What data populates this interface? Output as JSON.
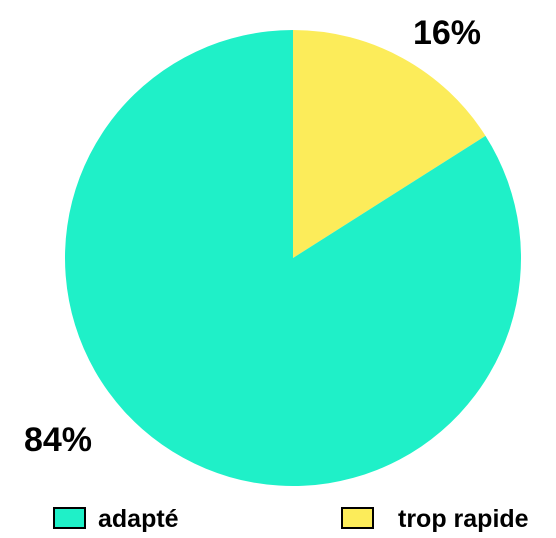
{
  "chart_data": {
    "type": "pie",
    "categories": [
      "adapté",
      "trop rapide"
    ],
    "values": [
      84,
      16
    ],
    "value_labels": [
      "84%",
      "16%"
    ],
    "colors": [
      "#1ff0c8",
      "#fcec5a"
    ],
    "legend_position": "bottom",
    "start_angle": "12 o'clock",
    "direction": "clockwise"
  }
}
